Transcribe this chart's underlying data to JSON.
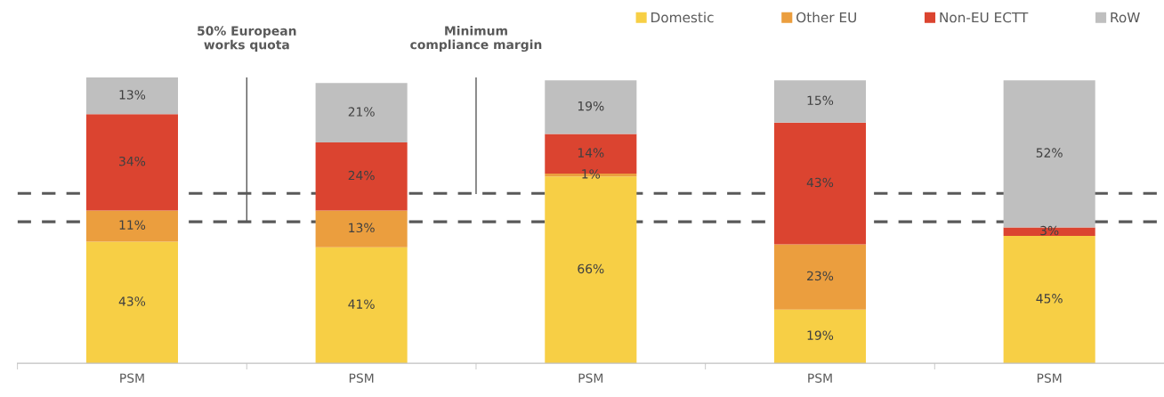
{
  "chart_data": {
    "type": "bar",
    "stacked": true,
    "categories": [
      "PSM",
      "PSM",
      "PSM",
      "PSM",
      "PSM"
    ],
    "series": [
      {
        "name": "Domestic",
        "color": "#f7cf45",
        "values": [
          43,
          41,
          66,
          19,
          45
        ],
        "value_labels": [
          "43%",
          "41%",
          "66%",
          "19%",
          "45%"
        ]
      },
      {
        "name": "Other EU",
        "color": "#eb9e3e",
        "values": [
          11,
          13,
          1,
          23,
          0
        ],
        "value_labels": [
          "11%",
          "13%",
          "1%",
          "23%",
          null
        ]
      },
      {
        "name": "Non-EU ECTT",
        "color": "#db4430",
        "values": [
          34,
          24,
          14,
          43,
          3
        ],
        "value_labels": [
          "34%",
          "24%",
          "14%",
          "43%",
          "3%"
        ]
      },
      {
        "name": "RoW",
        "color": "#bfbfbf",
        "values": [
          13,
          21,
          19,
          15,
          52
        ],
        "value_labels": [
          "13%",
          "21%",
          "19%",
          "15%",
          "52%"
        ]
      }
    ],
    "ref_lines": [
      {
        "axis": "y",
        "value": 50,
        "label": "50% European\nworks quota",
        "color": "#595959",
        "line_style": "dashed"
      },
      {
        "axis": "y",
        "value": 60,
        "label": "Minimum\ncompliance margin",
        "color": "#595959",
        "line_style": "dashed"
      }
    ],
    "grid": false,
    "legend": "top right",
    "tick_labels": "x"
  }
}
